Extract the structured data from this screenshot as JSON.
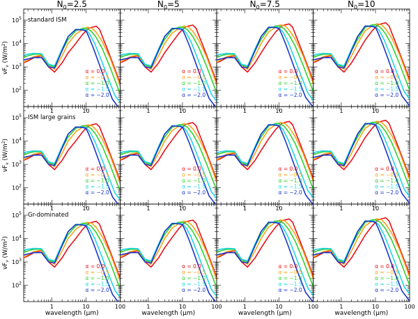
{
  "chart_data": {
    "type": "line",
    "columns": [
      {
        "label": "N",
        "sub": "0",
        "value": "=2.5"
      },
      {
        "label": "N",
        "sub": "0",
        "value": "=5"
      },
      {
        "label": "N",
        "sub": "0",
        "value": "=7.5"
      },
      {
        "label": "N",
        "sub": "0",
        "value": "=10"
      }
    ],
    "rows": [
      "standard ISM",
      "ISM large grains",
      "Gr-dominated"
    ],
    "ylabel": "νF_ν (W/m²)",
    "ylabel_parts": {
      "pre": "νF",
      "sub": "ν",
      "mid": " (W/m",
      "sup": "2",
      "post": ")"
    },
    "xlabel": "wavelength (μm)",
    "x_scale": "log",
    "y_scale": "log",
    "xlim": [
      0.15,
      100
    ],
    "ylim": [
      20,
      300000
    ],
    "x_ticks": [
      1,
      10,
      100
    ],
    "x_tick_labels": [
      "1",
      "10",
      "100"
    ],
    "y_ticks": [
      100,
      1000,
      10000,
      100000
    ],
    "y_tick_labels": [
      {
        "base": "10",
        "exp": "2"
      },
      {
        "base": "10",
        "exp": "3"
      },
      {
        "base": "10",
        "exp": "4"
      },
      {
        "base": "10",
        "exp": "5"
      }
    ],
    "inner_labels": [
      "1",
      "10"
    ],
    "legend": {
      "symbol": "α",
      "position": "lower-right",
      "entries": [
        "=  0.0",
        "= −0.5",
        "= −1.0",
        "= −1.5",
        "= −2.0"
      ],
      "colors": [
        "#e8101a",
        "#f4a51a",
        "#30d030",
        "#1ed6e6",
        "#1a35c8"
      ]
    },
    "series": [
      {
        "alpha": 0.0,
        "color": "#e8101a",
        "x": [
          0.15,
          0.2,
          0.3,
          0.5,
          0.8,
          1.2,
          2,
          3,
          5,
          8,
          12,
          15,
          20,
          25,
          30,
          40,
          60,
          100
        ],
        "y": [
          1500,
          1800,
          2500,
          3000,
          1000,
          600,
          1500,
          4000,
          10000,
          25000,
          45000,
          50000,
          55000,
          40000,
          20000,
          7000,
          1500,
          200
        ]
      },
      {
        "alpha": -0.5,
        "color": "#f4a51a",
        "x": [
          0.15,
          0.2,
          0.3,
          0.5,
          0.8,
          1.2,
          2,
          3,
          5,
          8,
          11,
          15,
          20,
          30,
          50,
          80,
          100
        ],
        "y": [
          1600,
          2000,
          2800,
          3200,
          1200,
          800,
          3000,
          10000,
          25000,
          40000,
          50000,
          45000,
          30000,
          12000,
          2500,
          400,
          150
        ]
      },
      {
        "alpha": -1.0,
        "color": "#30d030",
        "x": [
          0.15,
          0.2,
          0.3,
          0.5,
          0.8,
          1.2,
          2,
          3,
          5,
          8,
          10,
          14,
          20,
          30,
          50,
          100
        ],
        "y": [
          2500,
          3000,
          3500,
          3500,
          1200,
          1000,
          5000,
          15000,
          35000,
          45000,
          45000,
          35000,
          18000,
          6000,
          1000,
          70
        ]
      },
      {
        "alpha": -1.5,
        "color": "#1ed6e6",
        "x": [
          0.15,
          0.2,
          0.3,
          0.5,
          0.8,
          1.2,
          2,
          3,
          5,
          8,
          10,
          13,
          18,
          25,
          40,
          70,
          100
        ],
        "y": [
          3200,
          3500,
          3800,
          3700,
          1300,
          1100,
          6000,
          20000,
          40000,
          40000,
          38000,
          25000,
          10000,
          3000,
          500,
          60,
          30
        ]
      },
      {
        "alpha": -2.0,
        "color": "#1a35c8",
        "x": [
          0.15,
          0.2,
          0.3,
          0.5,
          0.8,
          1.2,
          2,
          3,
          5,
          8,
          10,
          12,
          16,
          22,
          35,
          60,
          100
        ],
        "y": [
          2000,
          2200,
          2500,
          2500,
          1000,
          900,
          5000,
          20000,
          40000,
          38000,
          35000,
          20000,
          7000,
          2000,
          300,
          40,
          15
        ]
      }
    ]
  }
}
